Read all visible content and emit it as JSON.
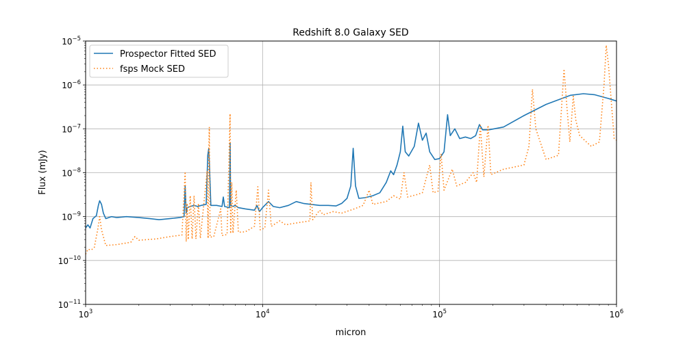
{
  "chart_data": {
    "type": "line",
    "title": "Redshift 8.0 Galaxy SED",
    "xlabel": "micron",
    "ylabel": "Flux (mJy)",
    "xscale": "log",
    "yscale": "log",
    "xlim": [
      1000,
      1000000
    ],
    "ylim": [
      1e-11,
      1e-05
    ],
    "grid": true,
    "legend_position": "top-left",
    "x_ticks": [
      {
        "value": 1000,
        "base": "10",
        "exp": "3"
      },
      {
        "value": 10000,
        "base": "10",
        "exp": "4"
      },
      {
        "value": 100000,
        "base": "10",
        "exp": "5"
      },
      {
        "value": 1000000,
        "base": "10",
        "exp": "6"
      }
    ],
    "y_ticks": [
      {
        "value": 1e-11,
        "base": "10",
        "exp": "−11"
      },
      {
        "value": 1e-10,
        "base": "10",
        "exp": "−10"
      },
      {
        "value": 1e-09,
        "base": "10",
        "exp": "−9"
      },
      {
        "value": 1e-08,
        "base": "10",
        "exp": "−8"
      },
      {
        "value": 1e-07,
        "base": "10",
        "exp": "−7"
      },
      {
        "value": 1e-06,
        "base": "10",
        "exp": "−6"
      },
      {
        "value": 1e-05,
        "base": "10",
        "exp": "−5"
      }
    ],
    "series": [
      {
        "name": "Prospector Fitted SED",
        "color": "#1f77b4",
        "style": "solid",
        "points": [
          [
            1000,
            5.5e-10
          ],
          [
            1030,
            6.5e-10
          ],
          [
            1060,
            5.5e-10
          ],
          [
            1100,
            9e-10
          ],
          [
            1150,
            1.05e-09
          ],
          [
            1180,
            1.8e-09
          ],
          [
            1200,
            2.3e-09
          ],
          [
            1230,
            1.9e-09
          ],
          [
            1260,
            1.2e-09
          ],
          [
            1300,
            9e-10
          ],
          [
            1400,
            1e-09
          ],
          [
            1500,
            9.5e-10
          ],
          [
            1700,
            1e-09
          ],
          [
            2000,
            9.5e-10
          ],
          [
            2300,
            9e-10
          ],
          [
            2600,
            8.5e-10
          ],
          [
            3000,
            9e-10
          ],
          [
            3400,
            9.5e-10
          ],
          [
            3600,
            1e-09
          ],
          [
            3650,
            5e-09
          ],
          [
            3700,
            1.2e-09
          ],
          [
            3750,
            1.6e-09
          ],
          [
            3900,
            1.7e-09
          ],
          [
            4100,
            1.8e-09
          ],
          [
            4300,
            1.7e-09
          ],
          [
            4500,
            1.8e-09
          ],
          [
            4800,
            1.9e-09
          ],
          [
            4900,
            2.5e-08
          ],
          [
            4960,
            3.5e-08
          ],
          [
            5000,
            1.8e-08
          ],
          [
            5100,
            1.8e-09
          ],
          [
            5500,
            1.8e-09
          ],
          [
            5900,
            1.7e-09
          ],
          [
            6000,
            2.8e-09
          ],
          [
            6100,
            1.7e-09
          ],
          [
            6500,
            1.6e-09
          ],
          [
            6560,
            4.8e-08
          ],
          [
            6600,
            1.8e-09
          ],
          [
            6800,
            1.7e-09
          ],
          [
            7000,
            1.8e-09
          ],
          [
            7300,
            1.6e-09
          ],
          [
            8000,
            1.5e-09
          ],
          [
            9000,
            1.4e-09
          ],
          [
            9300,
            1.8e-09
          ],
          [
            9600,
            1.3e-09
          ],
          [
            10000,
            1.6e-09
          ],
          [
            10800,
            2.2e-09
          ],
          [
            11500,
            1.7e-09
          ],
          [
            12500,
            1.6e-09
          ],
          [
            14000,
            1.8e-09
          ],
          [
            15500,
            2.2e-09
          ],
          [
            17000,
            2e-09
          ],
          [
            18800,
            1.9e-09
          ],
          [
            21000,
            1.8e-09
          ],
          [
            23500,
            1.8e-09
          ],
          [
            26000,
            1.75e-09
          ],
          [
            28000,
            2e-09
          ],
          [
            30000,
            2.6e-09
          ],
          [
            31500,
            5e-09
          ],
          [
            32500,
            3.6e-08
          ],
          [
            33500,
            5e-09
          ],
          [
            35000,
            2.6e-09
          ],
          [
            38000,
            2.7e-09
          ],
          [
            42000,
            3e-09
          ],
          [
            46000,
            3.5e-09
          ],
          [
            50000,
            6e-09
          ],
          [
            53000,
            1.1e-08
          ],
          [
            55000,
            9e-09
          ],
          [
            57500,
            1.5e-08
          ],
          [
            60000,
            3e-08
          ],
          [
            62000,
            1.15e-07
          ],
          [
            64000,
            3e-08
          ],
          [
            67000,
            2.4e-08
          ],
          [
            72000,
            4e-08
          ],
          [
            76000,
            1.35e-07
          ],
          [
            80000,
            5.5e-08
          ],
          [
            84000,
            8e-08
          ],
          [
            88000,
            3e-08
          ],
          [
            94000,
            2e-08
          ],
          [
            100000,
            2.1e-08
          ],
          [
            106000,
            3e-08
          ],
          [
            111000,
            2.1e-07
          ],
          [
            115000,
            7e-08
          ],
          [
            122000,
            1e-07
          ],
          [
            130000,
            6e-08
          ],
          [
            140000,
            6.5e-08
          ],
          [
            150000,
            6e-08
          ],
          [
            160000,
            7e-08
          ],
          [
            168000,
            1.25e-07
          ],
          [
            175000,
            9.5e-08
          ],
          [
            190000,
            9.5e-08
          ],
          [
            230000,
            1.1e-07
          ],
          [
            300000,
            2e-07
          ],
          [
            400000,
            3.6e-07
          ],
          [
            550000,
            5.8e-07
          ],
          [
            650000,
            6.3e-07
          ],
          [
            750000,
            6e-07
          ],
          [
            900000,
            4.9e-07
          ],
          [
            1000000,
            4.3e-07
          ]
        ]
      },
      {
        "name": "fsps Mock SED",
        "color": "#ff7f0e",
        "style": "dotted",
        "points": [
          [
            1000,
            1.4e-10
          ],
          [
            1030,
            1.8e-10
          ],
          [
            1080,
            1.75e-10
          ],
          [
            1120,
            2e-10
          ],
          [
            1170,
            5e-10
          ],
          [
            1200,
            1e-09
          ],
          [
            1230,
            5e-10
          ],
          [
            1260,
            3.5e-10
          ],
          [
            1300,
            2.2e-10
          ],
          [
            1500,
            2.3e-10
          ],
          [
            1800,
            2.6e-10
          ],
          [
            1900,
            3.5e-10
          ],
          [
            2000,
            2.9e-10
          ],
          [
            2500,
            3.1e-10
          ],
          [
            3000,
            3.5e-10
          ],
          [
            3500,
            3.8e-10
          ],
          [
            3650,
            1.05e-08
          ],
          [
            3700,
            2.7e-10
          ],
          [
            3750,
            2e-09
          ],
          [
            3800,
            3e-10
          ],
          [
            3900,
            3e-09
          ],
          [
            4000,
            3.1e-10
          ],
          [
            4100,
            3e-09
          ],
          [
            4200,
            3.1e-10
          ],
          [
            4340,
            2e-09
          ],
          [
            4450,
            3.2e-10
          ],
          [
            4860,
            1.1e-08
          ],
          [
            4920,
            3.2e-10
          ],
          [
            4960,
            3e-08
          ],
          [
            5000,
            1.1e-07
          ],
          [
            5050,
            3.4e-10
          ],
          [
            5300,
            3.5e-10
          ],
          [
            5800,
            1.5e-09
          ],
          [
            5900,
            3.7e-10
          ],
          [
            6300,
            3.9e-10
          ],
          [
            6550,
            2.2e-07
          ],
          [
            6600,
            4.1e-10
          ],
          [
            6700,
            6e-09
          ],
          [
            6800,
            4.2e-10
          ],
          [
            7100,
            4e-09
          ],
          [
            7300,
            4.4e-10
          ],
          [
            8000,
            4.5e-10
          ],
          [
            9000,
            6e-10
          ],
          [
            9400,
            4.8e-09
          ],
          [
            9700,
            5e-10
          ],
          [
            10300,
            5.5e-10
          ],
          [
            10800,
            4e-09
          ],
          [
            11200,
            6e-10
          ],
          [
            12500,
            8e-10
          ],
          [
            13500,
            6.5e-10
          ],
          [
            15000,
            7e-10
          ],
          [
            18500,
            8e-10
          ],
          [
            18750,
            6e-09
          ],
          [
            19200,
            8.5e-10
          ],
          [
            21000,
            1.4e-09
          ],
          [
            22000,
            1.1e-09
          ],
          [
            25000,
            1.3e-09
          ],
          [
            28000,
            1.2e-09
          ],
          [
            33000,
            1.5e-09
          ],
          [
            37000,
            1.8e-09
          ],
          [
            40000,
            4e-09
          ],
          [
            42000,
            1.9e-09
          ],
          [
            50000,
            2.2e-09
          ],
          [
            55000,
            3e-09
          ],
          [
            60000,
            2.5e-09
          ],
          [
            63000,
            1e-08
          ],
          [
            66000,
            2.8e-09
          ],
          [
            75000,
            3.2e-09
          ],
          [
            80000,
            3.5e-09
          ],
          [
            88000,
            1.5e-08
          ],
          [
            92000,
            3.5e-09
          ],
          [
            98000,
            3.8e-09
          ],
          [
            102000,
            2.7e-08
          ],
          [
            106000,
            4e-09
          ],
          [
            118000,
            1.2e-08
          ],
          [
            125000,
            5e-09
          ],
          [
            140000,
            6e-09
          ],
          [
            155000,
            1e-08
          ],
          [
            162000,
            6e-09
          ],
          [
            170000,
            1.2e-07
          ],
          [
            178000,
            8e-09
          ],
          [
            188000,
            1.2e-07
          ],
          [
            195000,
            9e-09
          ],
          [
            230000,
            1.2e-08
          ],
          [
            300000,
            1.5e-08
          ],
          [
            320000,
            4e-08
          ],
          [
            335000,
            8e-07
          ],
          [
            350000,
            1e-07
          ],
          [
            400000,
            2e-08
          ],
          [
            470000,
            2.5e-08
          ],
          [
            505000,
            2.3e-06
          ],
          [
            525000,
            3e-07
          ],
          [
            545000,
            5e-08
          ],
          [
            570000,
            5.5e-07
          ],
          [
            590000,
            1.5e-07
          ],
          [
            620000,
            7e-08
          ],
          [
            660000,
            5.5e-08
          ],
          [
            720000,
            4e-08
          ],
          [
            800000,
            5e-08
          ],
          [
            850000,
            1e-06
          ],
          [
            875000,
            8e-06
          ],
          [
            900000,
            3e-06
          ],
          [
            940000,
            3e-07
          ],
          [
            970000,
            6e-08
          ],
          [
            1000000,
            5.5e-08
          ]
        ]
      }
    ]
  }
}
